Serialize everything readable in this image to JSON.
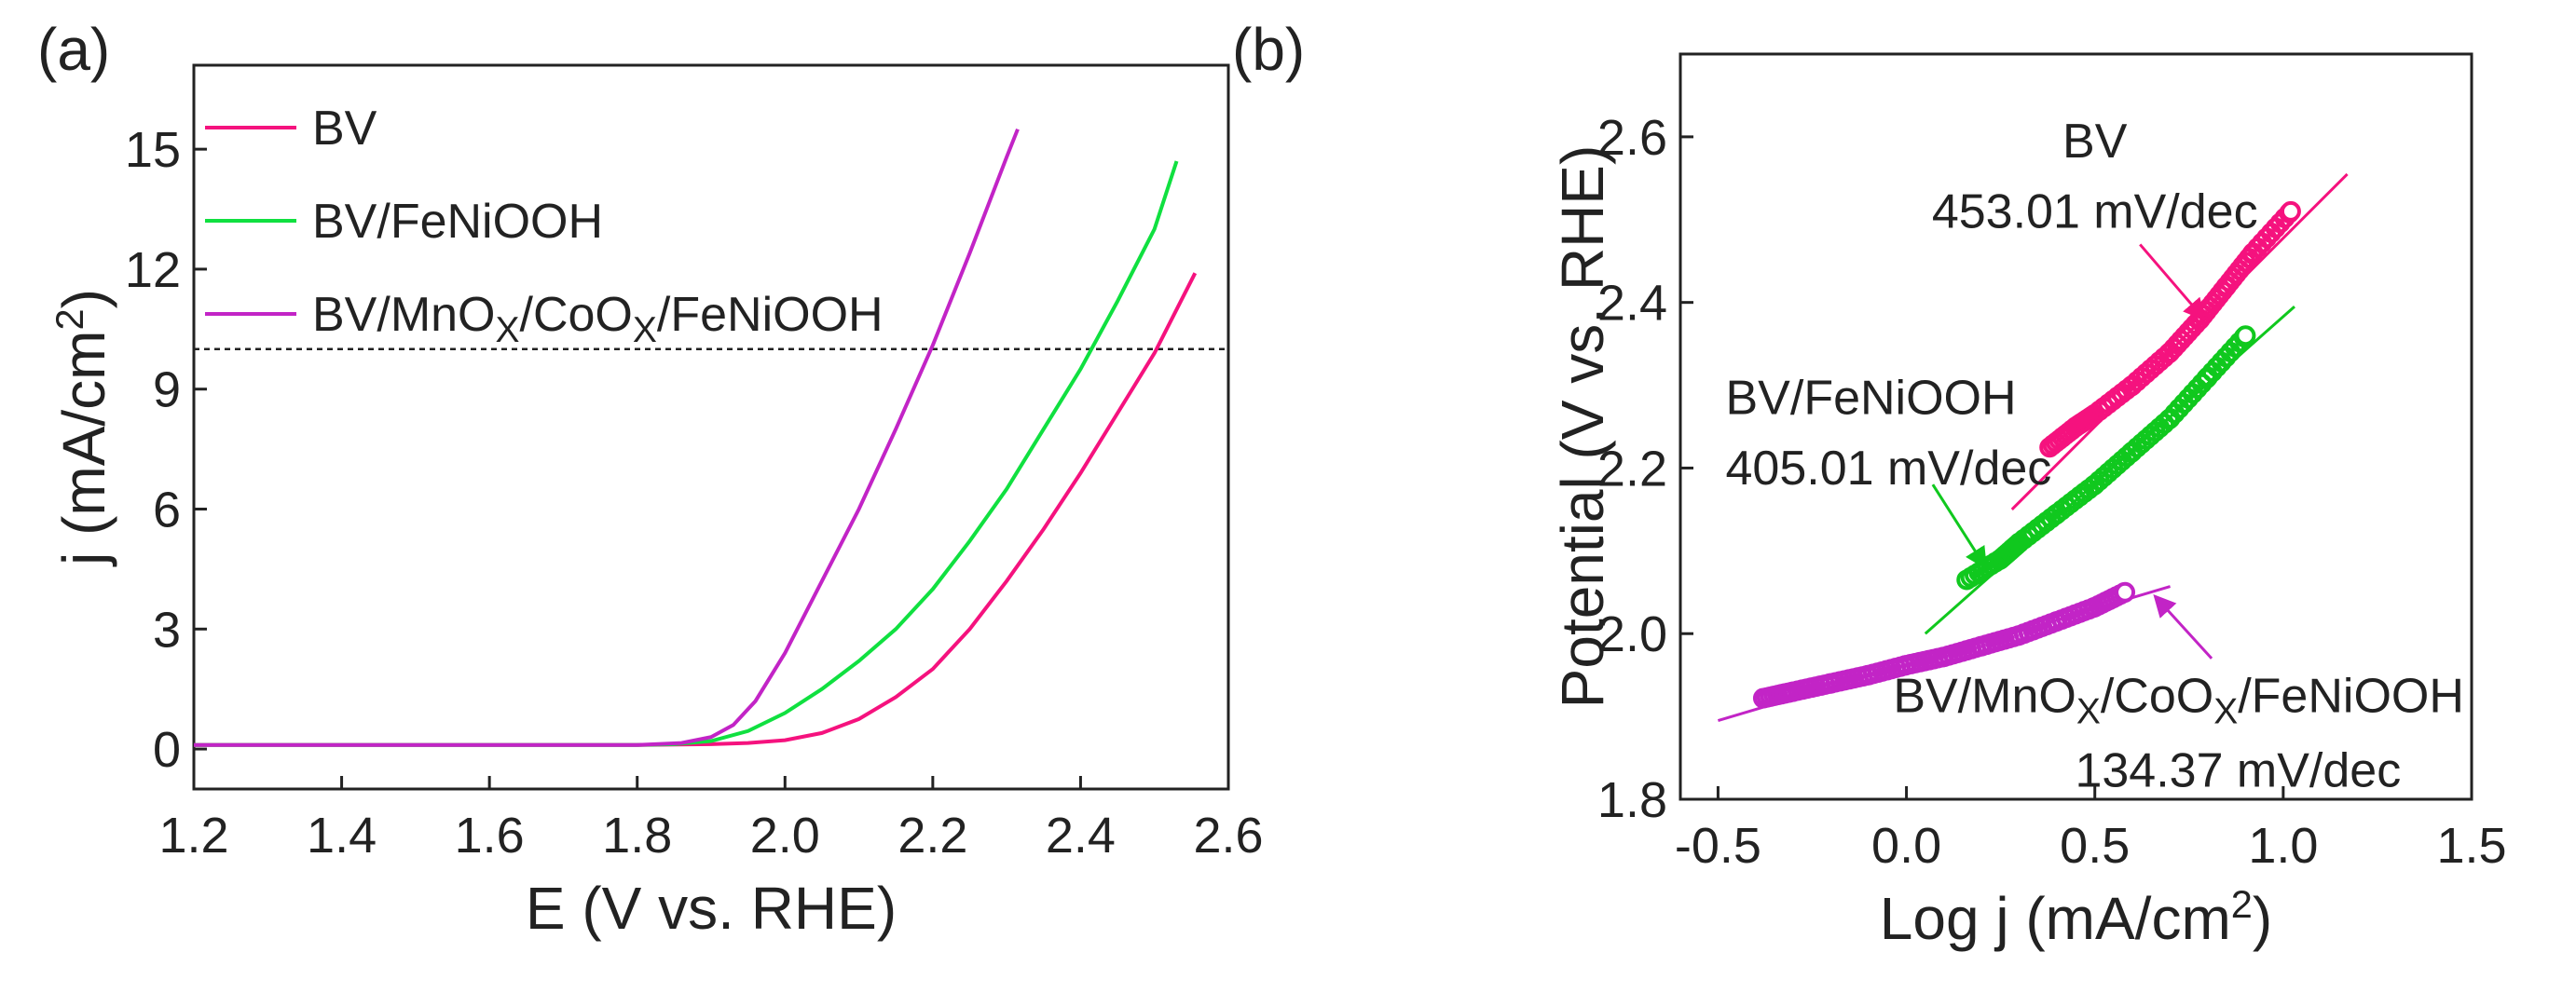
{
  "chart_data": [
    {
      "panel_label": "(a)",
      "type": "line",
      "xlabel": "E (V vs. RHE)",
      "ylabel": "j (mA/cm^2)",
      "xlim": [
        1.2,
        2.6
      ],
      "ylim": [
        -1,
        17.1
      ],
      "xticks": [
        1.2,
        1.4,
        1.6,
        1.8,
        2.0,
        2.2,
        2.4,
        2.6
      ],
      "xtick_labels": [
        "1.2",
        "1.4",
        "1.6",
        "1.8",
        "2.0",
        "2.2",
        "2.4",
        "2.6"
      ],
      "yticks": [
        0,
        3,
        6,
        9,
        12,
        15
      ],
      "ytick_labels": [
        "0",
        "3",
        "6",
        "9",
        "12",
        "15"
      ],
      "reference_line": {
        "y": 10,
        "style": "dashed"
      },
      "legend_position": "top-left",
      "series": [
        {
          "name": "BV",
          "color": "#f5127e",
          "x": [
            1.2,
            1.5,
            1.8,
            1.9,
            1.95,
            2.0,
            2.05,
            2.1,
            2.15,
            2.2,
            2.25,
            2.3,
            2.35,
            2.4,
            2.45,
            2.5,
            2.555
          ],
          "y": [
            0.1,
            0.1,
            0.1,
            0.12,
            0.15,
            0.22,
            0.4,
            0.75,
            1.3,
            2.0,
            3.0,
            4.2,
            5.5,
            6.9,
            8.4,
            9.9,
            11.9
          ]
        },
        {
          "name": "BV/FeNiOOH",
          "color": "#10e040",
          "x": [
            1.2,
            1.5,
            1.8,
            1.85,
            1.9,
            1.95,
            2.0,
            2.05,
            2.1,
            2.15,
            2.2,
            2.25,
            2.3,
            2.35,
            2.4,
            2.45,
            2.5,
            2.53
          ],
          "y": [
            0.1,
            0.1,
            0.1,
            0.12,
            0.2,
            0.45,
            0.9,
            1.5,
            2.2,
            3.0,
            4.0,
            5.2,
            6.5,
            8.0,
            9.5,
            11.2,
            13.0,
            14.7
          ]
        },
        {
          "name": "BV/MnO_X/CoO_X/FeNiOOH",
          "color": "#c224c6",
          "x": [
            1.2,
            1.5,
            1.8,
            1.86,
            1.9,
            1.93,
            1.96,
            2.0,
            2.05,
            2.1,
            2.15,
            2.2,
            2.25,
            2.3,
            2.315
          ],
          "y": [
            0.1,
            0.1,
            0.1,
            0.15,
            0.3,
            0.6,
            1.2,
            2.4,
            4.2,
            6.0,
            8.0,
            10.1,
            12.4,
            14.8,
            15.5
          ]
        }
      ]
    },
    {
      "panel_label": "(b)",
      "type": "scatter",
      "xlabel": "Log j (mA/cm^2)",
      "ylabel": "Potential (V vs. RHE)",
      "xlim": [
        -0.6,
        1.5
      ],
      "ylim": [
        1.8,
        2.7
      ],
      "xticks": [
        -0.5,
        0.0,
        0.5,
        1.0,
        1.5
      ],
      "xtick_labels": [
        "-0.5",
        "0.0",
        "0.5",
        "1.0",
        "1.5"
      ],
      "yticks": [
        1.8,
        2.0,
        2.2,
        2.4,
        2.6
      ],
      "ytick_labels": [
        "1.8",
        "2.0",
        "2.2",
        "2.4",
        "2.6"
      ],
      "series": [
        {
          "name": "BV",
          "color": "#f5127e",
          "tafel_slope": "453.01 mV/dec",
          "x": [
            0.38,
            0.45,
            0.5,
            0.6,
            0.7,
            0.78,
            0.85,
            0.92,
            1.02
          ],
          "y": [
            2.225,
            2.25,
            2.265,
            2.3,
            2.34,
            2.38,
            2.42,
            2.46,
            2.51
          ],
          "fit": {
            "x": [
              0.28,
              1.17
            ],
            "y": [
              2.15,
              2.555
            ]
          }
        },
        {
          "name": "BV/FeNiOOH",
          "color": "#10c81e",
          "tafel_slope": "405.01 mV/dec",
          "x": [
            0.16,
            0.25,
            0.3,
            0.4,
            0.5,
            0.6,
            0.7,
            0.8,
            0.9
          ],
          "y": [
            2.065,
            2.09,
            2.11,
            2.145,
            2.18,
            2.22,
            2.26,
            2.31,
            2.36
          ],
          "fit": {
            "x": [
              0.05,
              1.03
            ],
            "y": [
              2.0,
              2.395
            ]
          }
        },
        {
          "name": "BV/MnO_X/CoO_X/FeNiOOH",
          "color": "#c224c6",
          "tafel_slope": "134.37 mV/dec",
          "x": [
            -0.38,
            -0.3,
            -0.2,
            -0.1,
            0.0,
            0.1,
            0.2,
            0.3,
            0.4,
            0.5,
            0.58
          ],
          "y": [
            1.922,
            1.93,
            1.94,
            1.95,
            1.962,
            1.972,
            1.985,
            1.998,
            2.015,
            2.032,
            2.05
          ],
          "fit": {
            "x": [
              -0.5,
              0.7
            ],
            "y": [
              1.895,
              2.057
            ]
          }
        }
      ]
    }
  ]
}
